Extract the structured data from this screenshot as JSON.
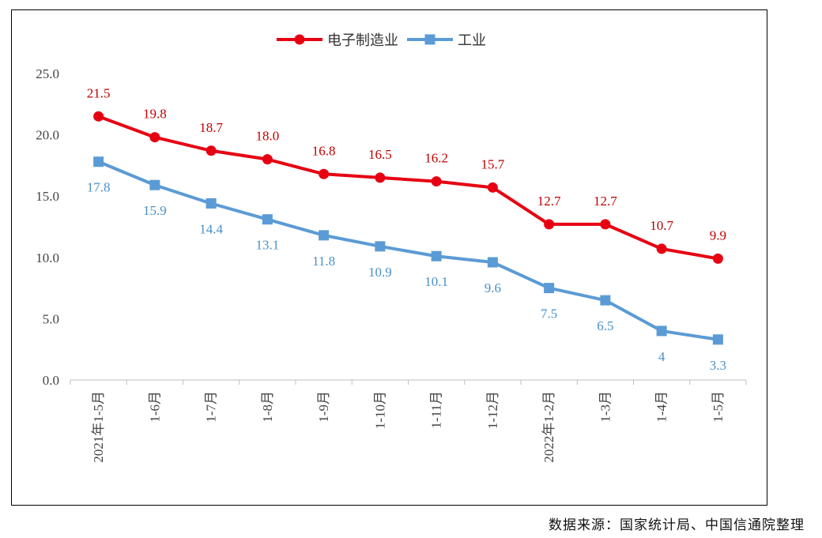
{
  "chart_data": {
    "type": "line",
    "categories": [
      "2021年1-5月",
      "1-6月",
      "1-7月",
      "1-8月",
      "1-9月",
      "1-10月",
      "1-11月",
      "1-12月",
      "2022年1-2月",
      "1-3月",
      "1-4月",
      "1-5月"
    ],
    "series": [
      {
        "name": "电子制造业",
        "color": "#e60012",
        "values": [
          21.5,
          19.8,
          18.7,
          18.0,
          16.8,
          16.5,
          16.2,
          15.7,
          12.7,
          12.7,
          10.7,
          9.9
        ],
        "labels": [
          "21.5",
          "19.8",
          "18.7",
          "18.0",
          "16.8",
          "16.5",
          "16.2",
          "15.7",
          "12.7",
          "12.7",
          "10.7",
          "9.9"
        ]
      },
      {
        "name": "工业",
        "color": "#5b9bd5",
        "values": [
          17.8,
          15.9,
          14.4,
          13.1,
          11.8,
          10.9,
          10.1,
          9.6,
          7.5,
          6.5,
          4,
          3.3
        ],
        "labels": [
          "17.8",
          "15.9",
          "14.4",
          "13.1",
          "11.8",
          "10.9",
          "10.1",
          "9.6",
          "7.5",
          "6.5",
          "4",
          "3.3"
        ]
      }
    ],
    "yticks": [
      "0.0",
      "5.0",
      "10.0",
      "15.0",
      "20.0",
      "25.0"
    ],
    "ylim": [
      0,
      25
    ],
    "legend_position": "top-center",
    "grid": false
  },
  "source_note": "数据来源：国家统计局、中国信通院整理"
}
